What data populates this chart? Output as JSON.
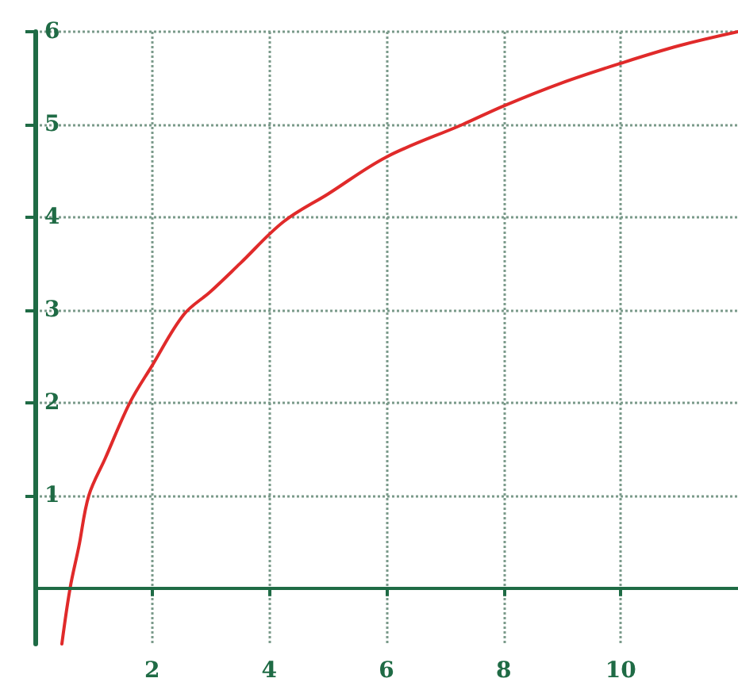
{
  "chart_data": {
    "type": "line",
    "series": [
      {
        "color": "#e02a2a",
        "x": [
          0.46,
          0.6,
          0.75,
          0.92,
          1.2,
          1.62,
          2,
          2.54,
          3,
          3.5,
          4.24,
          5,
          6,
          7.3,
          8,
          9,
          10,
          11,
          12
        ],
        "values": [
          -0.6,
          0,
          0.45,
          1,
          1.4,
          2,
          2.4,
          2.95,
          3.2,
          3.5,
          3.95,
          4.25,
          4.65,
          5,
          5.2,
          5.45,
          5.66,
          5.85,
          6
        ]
      }
    ],
    "xlim": [
      0,
      12
    ],
    "xticks": [
      2,
      4,
      6,
      8,
      10
    ],
    "ylim": [
      -0.6,
      6
    ],
    "yticks": [
      1,
      2,
      3,
      4,
      5,
      6
    ],
    "ref_lines": [
      {
        "axis": "y",
        "value": 0,
        "color": "#1f6b45"
      }
    ],
    "grid": true,
    "marker": "none",
    "line_style": "solid"
  }
}
